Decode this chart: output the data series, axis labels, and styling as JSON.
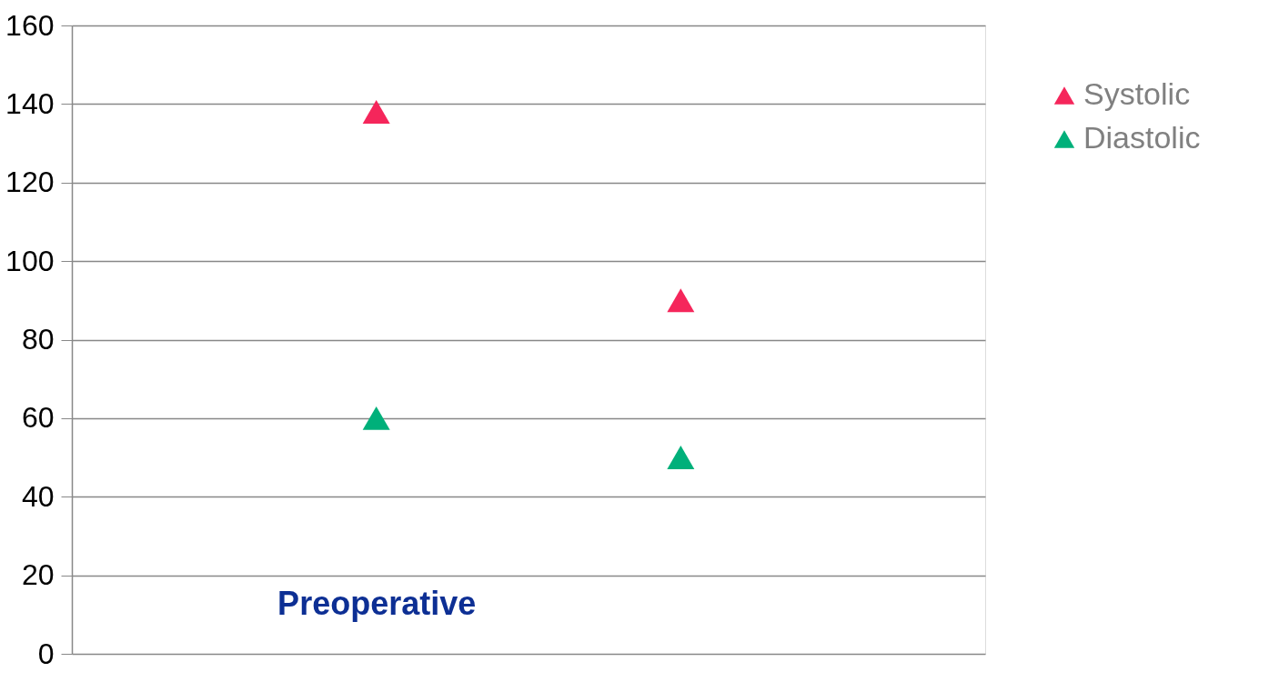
{
  "chart_data": {
    "type": "scatter",
    "categories": [
      "Preoperative",
      null
    ],
    "series": [
      {
        "name": "Systolic",
        "color": "#f5265b",
        "values": [
          138,
          90
        ]
      },
      {
        "name": "Diastolic",
        "color": "#00b07a",
        "values": [
          60,
          50
        ]
      }
    ],
    "ylim": [
      0,
      160
    ],
    "yticks": [
      0,
      20,
      40,
      60,
      80,
      100,
      120,
      140,
      160
    ],
    "grid": "y",
    "legend": "top right",
    "marker": "triangle"
  }
}
